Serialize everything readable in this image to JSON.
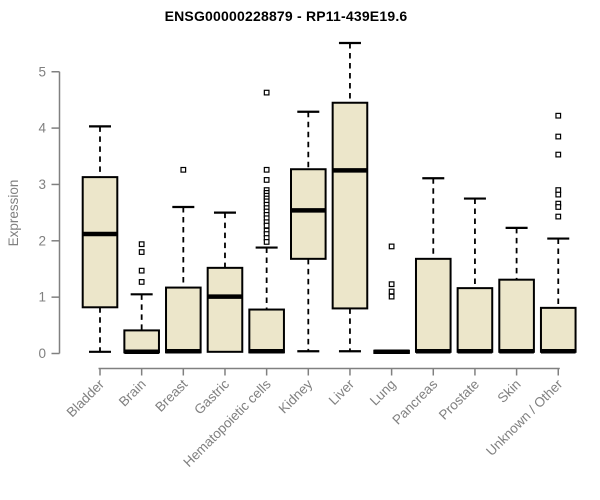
{
  "chart_data": {
    "type": "boxplot",
    "title": "ENSG00000228879 - RP11-439E19.6",
    "ylabel": "Expression",
    "xlabel": "",
    "ylim": [
      0,
      5
    ],
    "yticks": [
      0,
      1,
      2,
      3,
      4,
      5
    ],
    "grid": false,
    "legend": "none",
    "categories": [
      "Bladder",
      "Brain",
      "Breast",
      "Gastric",
      "Hematopoietic cells",
      "Kidney",
      "Liver",
      "Lung",
      "Pancreas",
      "Prostate",
      "Skin",
      "Unknown / Other"
    ],
    "series": [
      {
        "category": "Bladder",
        "whisker_low": 0.03,
        "q1": 0.82,
        "median": 2.12,
        "q3": 3.13,
        "whisker_high": 4.03,
        "outliers": []
      },
      {
        "category": "Brain",
        "whisker_low": 0.02,
        "q1": 0.02,
        "median": 0.03,
        "q3": 0.41,
        "whisker_high": 1.05,
        "outliers": [
          1.94,
          1.8,
          1.47,
          1.27
        ]
      },
      {
        "category": "Breast",
        "whisker_low": 0.02,
        "q1": 0.02,
        "median": 0.04,
        "q3": 1.17,
        "whisker_high": 2.6,
        "outliers": [
          3.26
        ]
      },
      {
        "category": "Gastric",
        "whisker_low": 0.03,
        "q1": 0.03,
        "median": 1.01,
        "q3": 1.52,
        "whisker_high": 2.5,
        "outliers": []
      },
      {
        "category": "Hematopoietic cells",
        "whisker_low": 0.02,
        "q1": 0.02,
        "median": 0.04,
        "q3": 0.78,
        "whisker_high": 1.88,
        "outliers": [
          4.63,
          3.26,
          3.08,
          2.9,
          2.85,
          2.8,
          2.75,
          2.7,
          2.64,
          2.58,
          2.52,
          2.46,
          2.4,
          2.33,
          2.27,
          2.18,
          2.12,
          2.05,
          1.98
        ]
      },
      {
        "category": "Kidney",
        "whisker_low": 0.04,
        "q1": 1.68,
        "median": 2.54,
        "q3": 3.27,
        "whisker_high": 4.29,
        "outliers": []
      },
      {
        "category": "Liver",
        "whisker_low": 0.04,
        "q1": 0.8,
        "median": 3.25,
        "q3": 4.45,
        "whisker_high": 5.51,
        "outliers": []
      },
      {
        "category": "Lung",
        "whisker_low": 0.01,
        "q1": 0.01,
        "median": 0.03,
        "q3": 0.05,
        "whisker_high": 0.05,
        "outliers": [
          1.9,
          1.23,
          1.1,
          1.01
        ]
      },
      {
        "category": "Pancreas",
        "whisker_low": 0.03,
        "q1": 0.03,
        "median": 0.04,
        "q3": 1.68,
        "whisker_high": 3.11,
        "outliers": []
      },
      {
        "category": "Prostate",
        "whisker_low": 0.03,
        "q1": 0.03,
        "median": 0.04,
        "q3": 1.16,
        "whisker_high": 2.75,
        "outliers": []
      },
      {
        "category": "Skin",
        "whisker_low": 0.03,
        "q1": 0.03,
        "median": 0.04,
        "q3": 1.31,
        "whisker_high": 2.23,
        "outliers": []
      },
      {
        "category": "Unknown / Other",
        "whisker_low": 0.03,
        "q1": 0.03,
        "median": 0.04,
        "q3": 0.81,
        "whisker_high": 2.04,
        "outliers": [
          4.22,
          3.85,
          3.53,
          2.9,
          2.82,
          2.66,
          2.6,
          2.43
        ]
      }
    ],
    "colors": {
      "box_fill": "#ece6ca",
      "box_border": "#000000",
      "median": "#000000",
      "whisker": "#000000",
      "outlier": "#000000",
      "axis": "#808080",
      "tick_label": "#808080",
      "title": "#000000",
      "background": "#ffffff"
    }
  }
}
